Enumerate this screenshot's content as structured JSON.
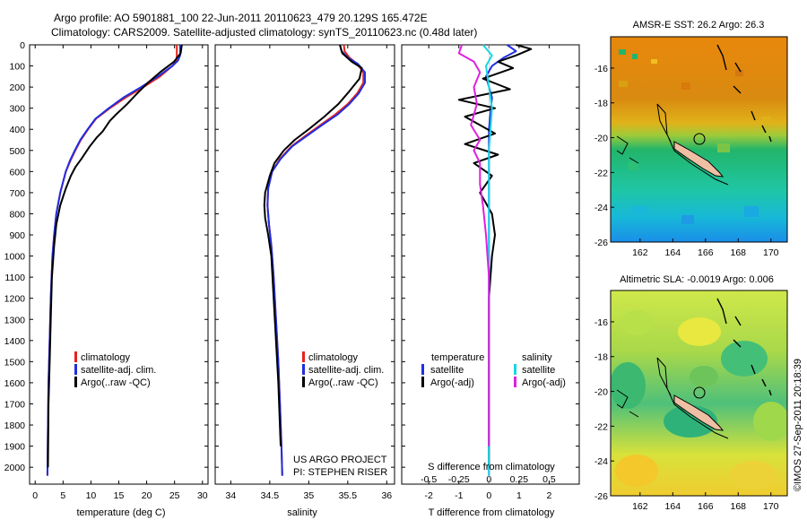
{
  "figure": {
    "title_line1": "Argo profile: AO 5901881_100 22-Jun-2011 20110623_479 20.129S 165.472E",
    "title_line2": "Climatology: CARS2009. Satellite-adjusted climatology: synTS_20110623.nc (0.48d later)",
    "credit": "©IMOS 27-Sep-2011 20:18:39",
    "project_line1": "US ARGO PROJECT",
    "project_line2": "PI: STEPHEN RISER"
  },
  "colors": {
    "climatology": "#e8231d",
    "satellite": "#1f2ee0",
    "argo": "#000000",
    "salinity_satellite": "#19d6e6",
    "salinity_argo": "#e020e0"
  },
  "chart_data": [
    {
      "type": "line",
      "id": "temperature",
      "xlabel": "temperature (deg C)",
      "ylabel": "",
      "xlim": [
        -1,
        31
      ],
      "ylim": [
        2080,
        0
      ],
      "xticks": [
        0,
        5,
        10,
        15,
        20,
        25,
        30
      ],
      "yticks": [
        0,
        100,
        200,
        300,
        400,
        500,
        600,
        700,
        800,
        900,
        1000,
        1100,
        1200,
        1300,
        1400,
        1500,
        1600,
        1700,
        1800,
        1900,
        2000
      ],
      "legend": [
        "climatology",
        "satellite-adj. clim.",
        "Argo(..raw -QC)"
      ],
      "series": [
        {
          "name": "climatology",
          "color_key": "climatology",
          "x": [
            25.4,
            25.4,
            25.3,
            24.6,
            22.4,
            19.4,
            16.2,
            13.4,
            10.9,
            9.5,
            8.2,
            7.2,
            6.3,
            5.5,
            4.5,
            3.8,
            3.4,
            3.1,
            2.8,
            2.6,
            2.4,
            2.3,
            2.2
          ],
          "y": [
            0,
            50,
            75,
            100,
            150,
            200,
            250,
            300,
            350,
            400,
            450,
            500,
            550,
            600,
            700,
            800,
            900,
            1000,
            1200,
            1400,
            1600,
            1800,
            2040
          ]
        },
        {
          "name": "satellite-adj. clim.",
          "color_key": "satellite",
          "x": [
            26.0,
            26.0,
            25.6,
            24.6,
            22.0,
            19.0,
            15.8,
            13.2,
            10.8,
            9.4,
            8.1,
            7.1,
            6.2,
            5.5,
            4.5,
            3.8,
            3.4,
            3.1,
            2.8,
            2.6,
            2.4,
            2.3,
            2.2
          ],
          "y": [
            0,
            50,
            75,
            100,
            150,
            200,
            250,
            300,
            350,
            400,
            450,
            500,
            550,
            600,
            700,
            800,
            900,
            1000,
            1200,
            1400,
            1600,
            1800,
            2040
          ]
        },
        {
          "name": "Argo(..raw -QC)",
          "color_key": "argo",
          "x": [
            26.3,
            26.1,
            24.9,
            22.4,
            20.2,
            18.3,
            16.5,
            14.5,
            13.4,
            12.1,
            11.0,
            9.8,
            8.3,
            7.2,
            6.4,
            5.5,
            4.5,
            3.8,
            3.4,
            3.0,
            2.8,
            2.6,
            2.4,
            2.3
          ],
          "y": [
            0,
            40,
            80,
            130,
            180,
            230,
            280,
            330,
            360,
            410,
            440,
            480,
            540,
            580,
            620,
            680,
            760,
            850,
            950,
            1100,
            1300,
            1500,
            1700,
            2000
          ]
        }
      ]
    },
    {
      "type": "line",
      "id": "salinity",
      "xlabel": "salinity",
      "ylabel": "",
      "xlim": [
        33.8,
        36.1
      ],
      "ylim": [
        2080,
        0
      ],
      "xticks": [
        34,
        34.5,
        35,
        35.5,
        36
      ],
      "legend": [
        "climatology",
        "satellite-adj. clim.",
        "Argo(..raw -QC)"
      ],
      "series": [
        {
          "name": "climatology",
          "color_key": "climatology",
          "x": [
            35.45,
            35.46,
            35.52,
            35.62,
            35.7,
            35.7,
            35.62,
            35.5,
            35.34,
            35.15,
            34.96,
            34.78,
            34.63,
            34.53,
            34.48,
            34.47,
            34.49,
            34.52,
            34.55,
            34.58,
            34.61,
            34.63,
            34.65,
            34.66
          ],
          "y": [
            0,
            30,
            60,
            90,
            130,
            180,
            230,
            280,
            330,
            380,
            430,
            480,
            540,
            600,
            680,
            760,
            850,
            950,
            1100,
            1300,
            1500,
            1700,
            1900,
            2040
          ]
        },
        {
          "name": "satellite-adj. clim.",
          "color_key": "satellite",
          "x": [
            35.4,
            35.42,
            35.5,
            35.63,
            35.72,
            35.72,
            35.64,
            35.52,
            35.37,
            35.17,
            34.98,
            34.79,
            34.64,
            34.53,
            34.48,
            34.47,
            34.49,
            34.52,
            34.55,
            34.58,
            34.61,
            34.63,
            34.65,
            34.66
          ],
          "y": [
            0,
            30,
            60,
            90,
            130,
            180,
            230,
            280,
            330,
            380,
            430,
            480,
            540,
            600,
            680,
            760,
            850,
            950,
            1100,
            1300,
            1500,
            1700,
            1900,
            2040
          ]
        },
        {
          "name": "Argo(..raw -QC)",
          "color_key": "argo",
          "x": [
            35.4,
            35.43,
            35.55,
            35.68,
            35.65,
            35.52,
            35.38,
            35.2,
            35.0,
            34.82,
            34.68,
            34.56,
            34.5,
            34.44,
            34.43,
            34.44,
            34.48,
            34.52,
            34.55,
            34.58,
            34.61,
            34.64
          ],
          "y": [
            0,
            40,
            80,
            110,
            160,
            220,
            280,
            340,
            400,
            450,
            500,
            560,
            620,
            700,
            760,
            820,
            900,
            1000,
            1200,
            1400,
            1600,
            1900
          ]
        }
      ]
    },
    {
      "type": "line",
      "id": "difference",
      "xlabel": "T difference from climatology",
      "xlabel_top": "S difference from climatology",
      "ylabel": "",
      "xlim": [
        -2.9,
        3.0
      ],
      "ylim": [
        2080,
        0
      ],
      "xticks_T": [
        -2,
        -1,
        0,
        1,
        2
      ],
      "xticks_S": [
        -0.5,
        -0.25,
        0,
        0.25,
        0.5
      ],
      "legend_left_title": "temperature",
      "legend_right_title": "salinity",
      "legend": [
        "satellite",
        "Argo(-adj)",
        "satellite",
        "Argo(-adj)"
      ],
      "series": [
        {
          "name": "temperature satellite",
          "color_key": "satellite",
          "x": [
            0.6,
            0.9,
            0.5,
            0.1,
            -0.1,
            0.1,
            0.0,
            0.0,
            0.0,
            0.0,
            0.0,
            0.0,
            0.0
          ],
          "y": [
            0,
            30,
            60,
            100,
            150,
            250,
            400,
            600,
            800,
            1000,
            1400,
            1800,
            2040
          ]
        },
        {
          "name": "temperature Argo(-adj)",
          "color_key": "argo",
          "x": [
            0.9,
            1.4,
            0.9,
            0.3,
            0.8,
            -0.2,
            0.7,
            -1.0,
            0.2,
            -0.8,
            -0.3,
            0.2,
            -0.8,
            0.3,
            -0.5,
            0.1,
            -0.3,
            0.1,
            0.2,
            0.1,
            0.0,
            0.0,
            0.0,
            0.0
          ],
          "y": [
            0,
            20,
            50,
            80,
            110,
            160,
            210,
            260,
            300,
            340,
            380,
            420,
            470,
            520,
            560,
            620,
            700,
            800,
            900,
            1000,
            1200,
            1500,
            1800,
            2000
          ]
        },
        {
          "name": "salinity satellite",
          "color_key": "salinity_satellite",
          "x": [
            -0.2,
            0.1,
            -0.1,
            0.0,
            0.1,
            0.0,
            0.0,
            0.0,
            0.0,
            0.0
          ],
          "y": [
            0,
            50,
            100,
            200,
            300,
            500,
            800,
            1200,
            1600,
            2040
          ]
        },
        {
          "name": "salinity Argo(-adj)",
          "color_key": "salinity_argo",
          "x": [
            -0.9,
            -1.0,
            -0.5,
            -0.3,
            -0.5,
            -0.4,
            -0.6,
            -0.3,
            -0.5,
            -0.3,
            -0.3,
            -0.2,
            -0.1,
            0.0,
            0.0,
            0.0
          ],
          "y": [
            0,
            40,
            80,
            130,
            200,
            280,
            380,
            450,
            500,
            560,
            660,
            760,
            900,
            1100,
            1500,
            1900
          ]
        }
      ]
    },
    {
      "type": "heatmap",
      "id": "sst_map",
      "title": "AMSR-E SST: 26.2 Argo: 26.3",
      "xlim": [
        160.2,
        171.0
      ],
      "ylim": [
        -26,
        -14.2
      ],
      "xticks": [
        162,
        164,
        166,
        168,
        170
      ],
      "yticks": [
        -16,
        -18,
        -20,
        -22,
        -24,
        -26
      ],
      "argo_position": [
        165.472,
        -20.129
      ]
    },
    {
      "type": "heatmap",
      "id": "sla_map",
      "title": "Altimetric SLA: -0.0019 Argo: 0.006",
      "xlim": [
        160.2,
        171.0
      ],
      "ylim": [
        -26,
        -14.2
      ],
      "xticks": [
        162,
        164,
        166,
        168,
        170
      ],
      "yticks": [
        -16,
        -18,
        -20,
        -22,
        -24,
        -26
      ],
      "argo_position": [
        165.472,
        -20.129
      ]
    }
  ]
}
